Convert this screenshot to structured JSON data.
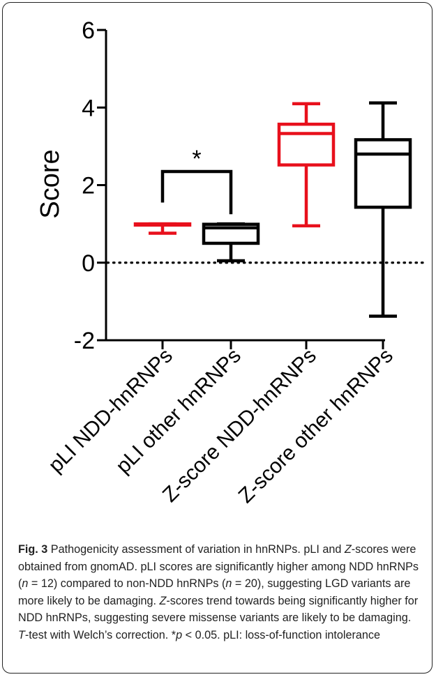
{
  "chart_data": {
    "type": "box",
    "ylabel": "Score",
    "ylim": [
      -2,
      6
    ],
    "yticks": [
      -2,
      0,
      2,
      4,
      6
    ],
    "reference_line": {
      "y": 0,
      "style": "dotted"
    },
    "categories": [
      "pLI NDD-hnRNPs",
      "pLI other hnRNPs",
      "Z-score NDD-hnRNPs",
      "Z-score other hnRNPs"
    ],
    "boxes": [
      {
        "category": "pLI NDD-hnRNPs",
        "min": 0.76,
        "q1": 0.97,
        "median": 0.99,
        "q3": 1.0,
        "max": 1.0,
        "color": "#e8101c"
      },
      {
        "category": "pLI other hnRNPs",
        "min": 0.05,
        "q1": 0.5,
        "median": 0.9,
        "q3": 0.99,
        "max": 1.0,
        "color": "#000000"
      },
      {
        "category": "Z-score NDD-hnRNPs",
        "min": 0.95,
        "q1": 2.52,
        "median": 3.33,
        "q3": 3.57,
        "max": 4.1,
        "color": "#e8101c"
      },
      {
        "category": "Z-score other hnRNPs",
        "min": -1.38,
        "q1": 1.43,
        "median": 2.8,
        "q3": 3.17,
        "max": 4.12,
        "color": "#000000"
      }
    ],
    "significance": {
      "between": [
        "pLI NDD-hnRNPs",
        "pLI other hnRNPs"
      ],
      "label": "*"
    },
    "bracket_y": {
      "top": 2.35,
      "left_end": 1.55,
      "right_end": 1.25
    }
  },
  "caption": {
    "label": "Fig. 3",
    "p1": " Pathogenicity assessment of variation in hnRNPs. pLI and ",
    "z1": "Z",
    "p2": "-scores were obtained from gnomAD. pLI scores are significantly higher among NDD hnRNPs (",
    "n1": "n",
    "p3": " = 12) compared to non-NDD hnRNPs (",
    "n2": "n",
    "p4": " = 20), suggesting LGD variants are more likely to be damaging. ",
    "z2": "Z",
    "p5": "-scores trend towards being significantly higher for NDD hnRNPs, suggesting severe missense variants are likely to be damaging. ",
    "t": "T",
    "p6": "-test with Welch’s correction. *",
    "pv": "p",
    "p7": " < 0.05. pLI: loss-of-function intolerance"
  }
}
